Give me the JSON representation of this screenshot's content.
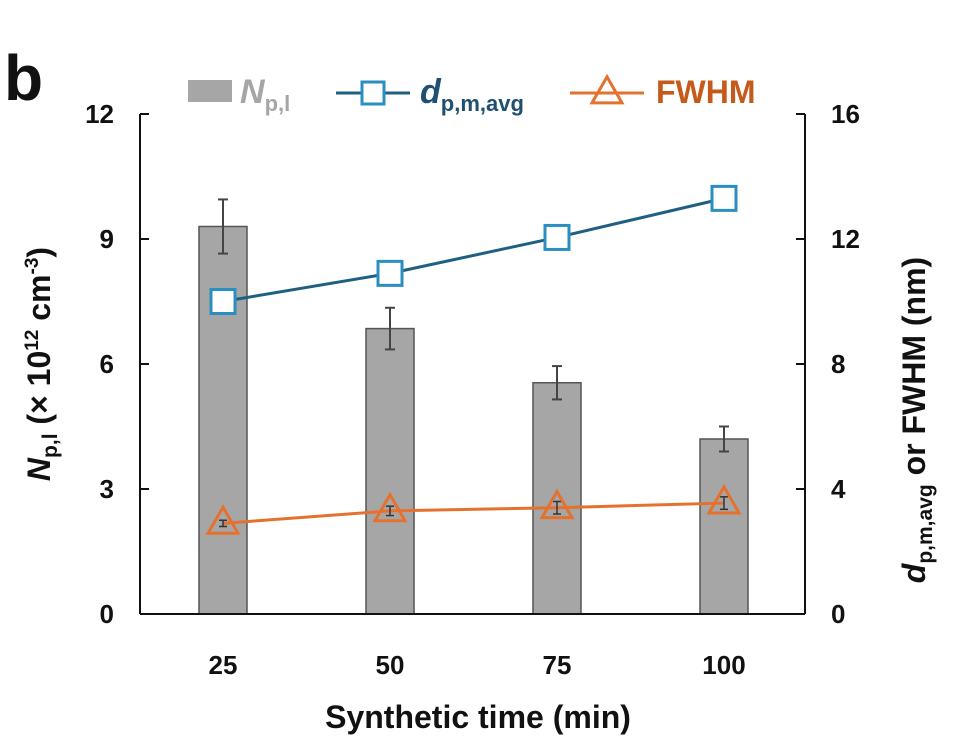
{
  "panel_label": "b",
  "colors": {
    "bar": "#a6a6a6",
    "bar_stroke": "#555555",
    "d_series": "#1f5f82",
    "d_marker": "#2a8fc0",
    "fwhm_series": "#e4722e",
    "fwhm_text": "#c55a1a",
    "legend_np_text": "#a6a6a6",
    "legend_d_text": "#1f5070",
    "axis": "#111111"
  },
  "chart_data": {
    "type": "bar",
    "categories": [
      "25",
      "50",
      "75",
      "100"
    ],
    "xlabel": "Synthetic time (min)",
    "ylabel_left": {
      "main": "N",
      "sub": "p,l",
      "rest": " (× 10",
      "sup": "12",
      "unit": " cm",
      "unit_sup": "-3",
      "close": ")"
    },
    "ylabel_right": {
      "main": "d",
      "sub": "p,m,avg",
      "rest": " or FWHM (nm)"
    },
    "y_left": {
      "lim": [
        0,
        12
      ],
      "ticks": [
        "0",
        "3",
        "6",
        "9",
        "12"
      ]
    },
    "y_right": {
      "lim": [
        0,
        16
      ],
      "ticks": [
        "0",
        "4",
        "8",
        "12",
        "16"
      ]
    },
    "grid": false,
    "legend": {
      "placement": "top",
      "np": {
        "main": "N",
        "sub": "p,l"
      },
      "d": {
        "main": "d",
        "sub": "p,m,avg"
      },
      "fwhm": {
        "label": "FWHM"
      }
    },
    "bars": {
      "axis": "left",
      "values": [
        9.3,
        6.85,
        5.55,
        4.2
      ],
      "errors": [
        0.65,
        0.5,
        0.4,
        0.3
      ]
    },
    "lines": [
      {
        "key": "d",
        "axis": "right",
        "marker": "square",
        "values": [
          10.0,
          10.9,
          12.05,
          13.3
        ],
        "errors": [
          0.15,
          0.25,
          0.25,
          0.25
        ]
      },
      {
        "key": "fwhm",
        "axis": "right",
        "marker": "triangle",
        "values": [
          2.9,
          3.3,
          3.4,
          3.55
        ],
        "errors": [
          0.1,
          0.15,
          0.2,
          0.2
        ]
      }
    ]
  }
}
